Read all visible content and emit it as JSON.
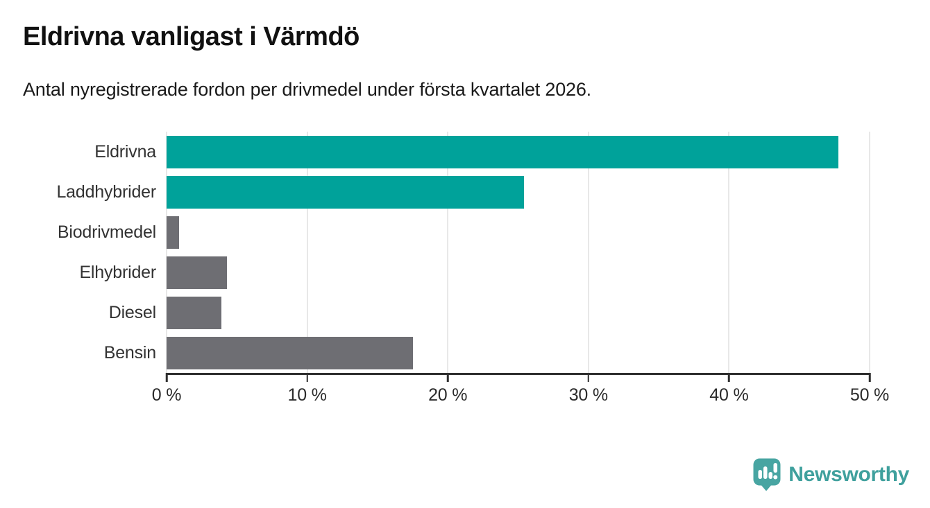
{
  "header": {
    "title": "Eldrivna vanligast i Värmdö",
    "subtitle": "Antal nyregistrerade fordon per drivmedel under första kvartalet 2026."
  },
  "chart_data": {
    "type": "bar",
    "orientation": "horizontal",
    "title": "Eldrivna vanligast i Värmdö",
    "subtitle": "Antal nyregistrerade fordon per drivmedel under första kvartalet 2026.",
    "categories": [
      "Eldrivna",
      "Laddhybrider",
      "Biodrivmedel",
      "Elhybrider",
      "Diesel",
      "Bensin"
    ],
    "values": [
      47.8,
      25.4,
      0.9,
      4.3,
      3.9,
      17.5
    ],
    "unit": "%",
    "xlabel": "",
    "ylabel": "",
    "xlim": [
      0,
      50
    ],
    "x_ticks": [
      0,
      10,
      20,
      30,
      40,
      50
    ],
    "x_tick_labels": [
      "0 %",
      "10 %",
      "20 %",
      "30 %",
      "40 %",
      "50 %"
    ],
    "bar_colors": [
      "#00a29a",
      "#00a29a",
      "#6e6e73",
      "#6e6e73",
      "#6e6e73",
      "#6e6e73"
    ],
    "grid": "vertical gridlines at each x tick",
    "legend": "none"
  },
  "colors": {
    "accent_teal": "#00a29a",
    "bar_gray": "#6e6e73",
    "axis": "#2e2e2e",
    "gridline": "#e8e8e8",
    "logo_teal": "#48a5a2",
    "brand_text": "#3fa09d"
  },
  "footer": {
    "brand": "Newsworthy",
    "logo_icon": "newsworthy-pin-barchart-icon"
  }
}
